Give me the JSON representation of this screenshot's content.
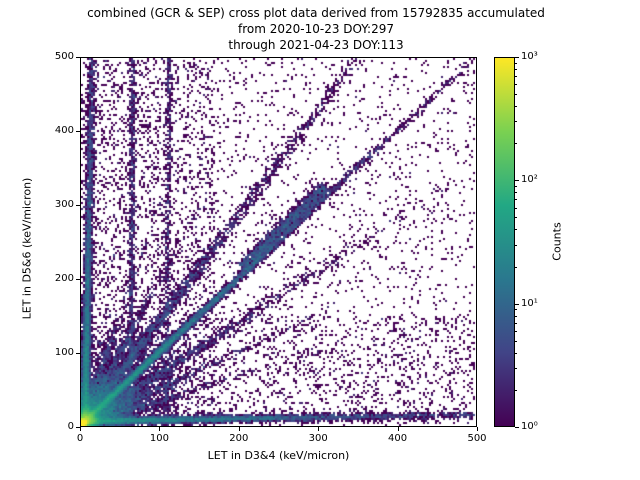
{
  "figure": {
    "title_lines": [
      "combined (GCR & SEP) cross plot data derived from 15792835 accumulated",
      "from 2020-10-23 DOY:297",
      "through 2021-04-23 DOY:113"
    ]
  },
  "chart_data": {
    "type": "heatmap",
    "title": "combined (GCR & SEP) cross plot data derived from 15792835 accumulated from 2020-10-23 DOY:297 through 2021-04-23 DOY:113",
    "xlabel": "LET in D3&4 (keV/micron)",
    "ylabel": "LET in D5&6 (keV/micron)",
    "xlim": [
      0,
      500
    ],
    "ylim": [
      0,
      500
    ],
    "xticks": [
      0,
      100,
      200,
      300,
      400,
      500
    ],
    "yticks": [
      0,
      100,
      200,
      300,
      400,
      500
    ],
    "grid": false,
    "legend": "none",
    "colorbar": {
      "label": "Counts",
      "scale": "log",
      "vmin": 1,
      "vmax": 1000,
      "tick_labels": [
        "10⁰",
        "10¹",
        "10²",
        "10³"
      ],
      "cmap": "viridis",
      "cmap_stops": [
        "#440154",
        "#414487",
        "#2a788e",
        "#22a884",
        "#7ad151",
        "#fde725"
      ]
    },
    "accumulated_events": "15792835",
    "density_features": [
      {
        "kind": "gauss",
        "x": 2,
        "y": 2,
        "sx": 2.5,
        "sy": 2.5,
        "n": 26000
      },
      {
        "kind": "gauss",
        "x": 6,
        "y": 6,
        "sx": 7,
        "sy": 7,
        "n": 14000
      },
      {
        "kind": "gauss",
        "x": 18,
        "y": 18,
        "sx": 22,
        "sy": 22,
        "n": 7000
      },
      {
        "kind": "band",
        "from": [
          0,
          0
        ],
        "to": [
          500,
          500
        ],
        "width": 5,
        "n": 9000,
        "decay": 150
      },
      {
        "kind": "band",
        "from": [
          205,
          215
        ],
        "to": [
          310,
          325
        ],
        "width": 9,
        "n": 1600,
        "decay": 0
      },
      {
        "kind": "band",
        "from": [
          0,
          0
        ],
        "to": [
          350,
          500
        ],
        "width": 8,
        "n": 2600,
        "decay": 260
      },
      {
        "kind": "band",
        "from": [
          0,
          0
        ],
        "to": [
          500,
          350
        ],
        "width": 8,
        "n": 1400,
        "decay": 160
      },
      {
        "kind": "band",
        "from": [
          0,
          5
        ],
        "to": [
          500,
          14
        ],
        "width": 5,
        "n": 6500,
        "decay": 170
      },
      {
        "kind": "band",
        "from": [
          5,
          0
        ],
        "to": [
          14,
          500
        ],
        "width": 5,
        "n": 6500,
        "decay": 170
      },
      {
        "kind": "band",
        "from": [
          63,
          0
        ],
        "to": [
          66,
          500
        ],
        "width": 4,
        "n": 900,
        "decay": 0
      },
      {
        "kind": "band",
        "from": [
          108,
          0
        ],
        "to": [
          112,
          500
        ],
        "width": 4,
        "n": 550,
        "decay": 0
      },
      {
        "kind": "band",
        "from": [
          0,
          0
        ],
        "to": [
          150,
          300
        ],
        "width": 6,
        "n": 900,
        "decay": 90
      },
      {
        "kind": "band",
        "from": [
          0,
          0
        ],
        "to": [
          300,
          150
        ],
        "width": 6,
        "n": 900,
        "decay": 90
      },
      {
        "kind": "band",
        "from": [
          0,
          0
        ],
        "to": [
          100,
          300
        ],
        "width": 5,
        "n": 600,
        "decay": 80
      },
      {
        "kind": "band",
        "from": [
          0,
          0
        ],
        "to": [
          300,
          100
        ],
        "width": 5,
        "n": 600,
        "decay": 80
      },
      {
        "kind": "uniform",
        "x0": 0,
        "x1": 500,
        "y0": 0,
        "y1": 500,
        "n": 2600
      },
      {
        "kind": "uniform",
        "x0": 0,
        "x1": 170,
        "y0": 0,
        "y1": 500,
        "n": 2000
      },
      {
        "kind": "uniform",
        "x0": 0,
        "x1": 500,
        "y0": 0,
        "y1": 150,
        "n": 1200
      },
      {
        "kind": "uniform",
        "x0": 0,
        "x1": 120,
        "y0": 0,
        "y1": 120,
        "n": 1500
      }
    ]
  }
}
